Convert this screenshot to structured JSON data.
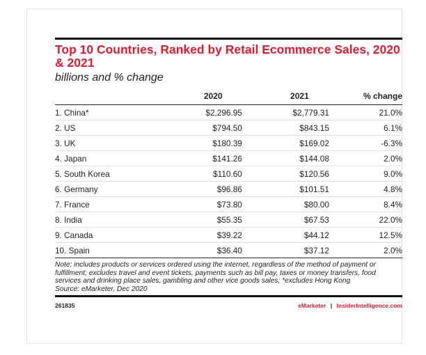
{
  "title": "Top 10 Countries, Ranked by Retail Ecommerce Sales, 2020 & 2021",
  "subtitle": "billions and % change",
  "table": {
    "headers": [
      "",
      "2020",
      "2021",
      "% change"
    ],
    "rows": [
      {
        "country": "1. China*",
        "v2020": "$2,296.95",
        "v2021": "$2,779.31",
        "change": "21.0%"
      },
      {
        "country": "2. US",
        "v2020": "$794.50",
        "v2021": "$843.15",
        "change": "6.1%"
      },
      {
        "country": "3. UK",
        "v2020": "$180.39",
        "v2021": "$169.02",
        "change": "-6.3%"
      },
      {
        "country": "4. Japan",
        "v2020": "$141.26",
        "v2021": "$144.08",
        "change": "2.0%"
      },
      {
        "country": "5. South Korea",
        "v2020": "$110.60",
        "v2021": "$120.56",
        "change": "9.0%"
      },
      {
        "country": "6. Germany",
        "v2020": "$96.86",
        "v2021": "$101.51",
        "change": "4.8%"
      },
      {
        "country": "7. France",
        "v2020": "$73.80",
        "v2021": "$80.00",
        "change": "8.4%"
      },
      {
        "country": "8. India",
        "v2020": "$55.35",
        "v2021": "$67.53",
        "change": "22.0%"
      },
      {
        "country": "9. Canada",
        "v2020": "$39.22",
        "v2021": "$44.12",
        "change": "12.5%"
      },
      {
        "country": "10. Spain",
        "v2020": "$36.40",
        "v2021": "$37.12",
        "change": "2.0%"
      }
    ]
  },
  "note": "Note: includes products or services ordered using the internet, regardless of the method of payment or fulfillment; excludes travel and event tickets, payments such as bill pay, taxes or money transfers, food services and drinking place sales, gambling and other vice goods sales; *excludes Hong Kong",
  "source": "Source: eMarketer, Dec 2020",
  "footer": {
    "id": "261835",
    "brand_a": "eMarketer",
    "separator": "|",
    "brand_b": "InsiderIntelligence.com"
  },
  "colors": {
    "title": "#e8192c",
    "brand": "#e8192c",
    "rule": "#111111"
  }
}
